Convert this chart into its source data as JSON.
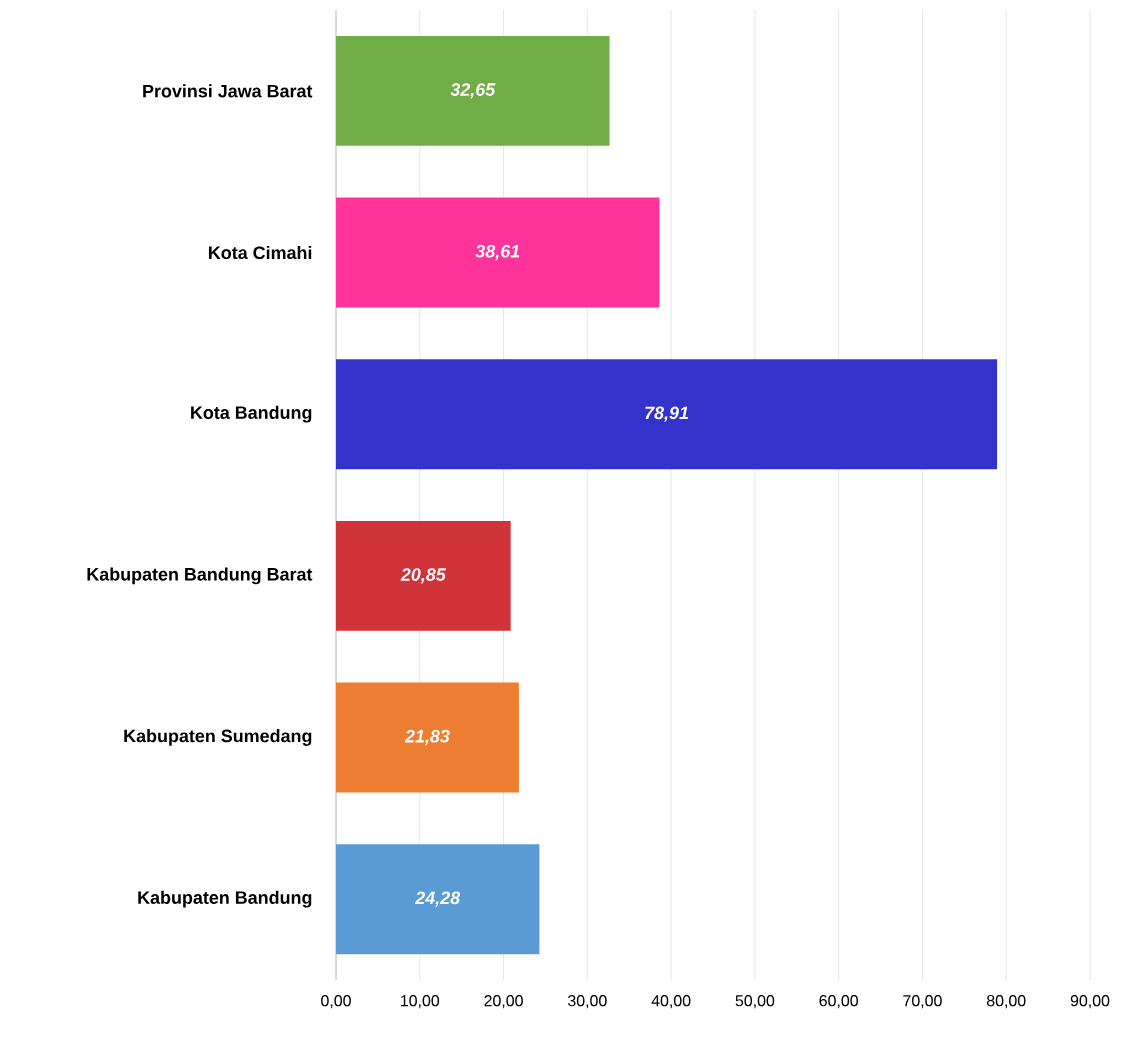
{
  "chart_data": {
    "type": "bar",
    "orientation": "horizontal",
    "categories": [
      "Provinsi Jawa Barat",
      "Kota Cimahi",
      "Kota Bandung",
      "Kabupaten Bandung Barat",
      "Kabupaten Sumedang",
      "Kabupaten Bandung"
    ],
    "values": [
      32.65,
      38.61,
      78.91,
      20.85,
      21.83,
      24.28
    ],
    "value_labels": [
      "32,65",
      "38,61",
      "78,91",
      "20,85",
      "21,83",
      "24,28"
    ],
    "colors": [
      "#70ad47",
      "#ff3399",
      "#3333cc",
      "#d13438",
      "#ed7d31",
      "#5b9bd5"
    ],
    "xlim": [
      0,
      90
    ],
    "xticks": [
      {
        "value": 0,
        "label": "0,00"
      },
      {
        "value": 10,
        "label": "10,00"
      },
      {
        "value": 20,
        "label": "20,00"
      },
      {
        "value": 30,
        "label": "30,00"
      },
      {
        "value": 40,
        "label": "40,00"
      },
      {
        "value": 50,
        "label": "50,00"
      },
      {
        "value": 60,
        "label": "60,00"
      },
      {
        "value": 70,
        "label": "70,00"
      },
      {
        "value": 80,
        "label": "80,00"
      },
      {
        "value": 90,
        "label": "90,00"
      }
    ],
    "grid": "x"
  }
}
